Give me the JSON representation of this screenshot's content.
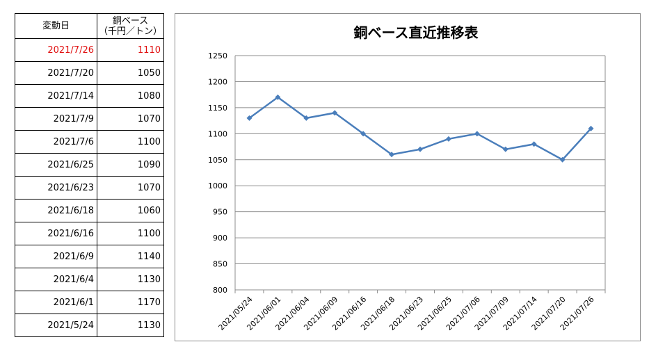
{
  "table": {
    "header": {
      "date": "変動日",
      "price_line1": "銅ベース",
      "price_line2": "（千円／トン）"
    },
    "rows": [
      {
        "date": "2021/7/26",
        "price": "1110",
        "highlight": true
      },
      {
        "date": "2021/7/20",
        "price": "1050"
      },
      {
        "date": "2021/7/14",
        "price": "1080"
      },
      {
        "date": "2021/7/9",
        "price": "1070"
      },
      {
        "date": "2021/7/6",
        "price": "1100"
      },
      {
        "date": "2021/6/25",
        "price": "1090"
      },
      {
        "date": "2021/6/23",
        "price": "1070"
      },
      {
        "date": "2021/6/18",
        "price": "1060"
      },
      {
        "date": "2021/6/16",
        "price": "1100"
      },
      {
        "date": "2021/6/9",
        "price": "1140"
      },
      {
        "date": "2021/6/4",
        "price": "1130"
      },
      {
        "date": "2021/6/1",
        "price": "1170"
      },
      {
        "date": "2021/5/24",
        "price": "1130"
      }
    ],
    "highlight_color": "#e01010"
  },
  "chart_data": {
    "type": "line",
    "title": "銅ベース直近推移表",
    "categories": [
      "2021/05/24",
      "2021/06/01",
      "2021/06/04",
      "2021/06/09",
      "2021/06/16",
      "2021/06/18",
      "2021/06/23",
      "2021/06/25",
      "2021/07/06",
      "2021/07/09",
      "2021/07/14",
      "2021/07/20",
      "2021/07/26"
    ],
    "series": [
      {
        "values": [
          1130,
          1170,
          1130,
          1140,
          1100,
          1060,
          1070,
          1090,
          1100,
          1070,
          1080,
          1050,
          1110
        ],
        "color": "#4a7ebb"
      }
    ],
    "ylim": [
      800,
      1250
    ],
    "yticks": [
      800,
      850,
      900,
      950,
      1000,
      1050,
      1100,
      1150,
      1200,
      1250
    ],
    "grid": true,
    "marker": "diamond",
    "xlabel": "",
    "ylabel": ""
  }
}
